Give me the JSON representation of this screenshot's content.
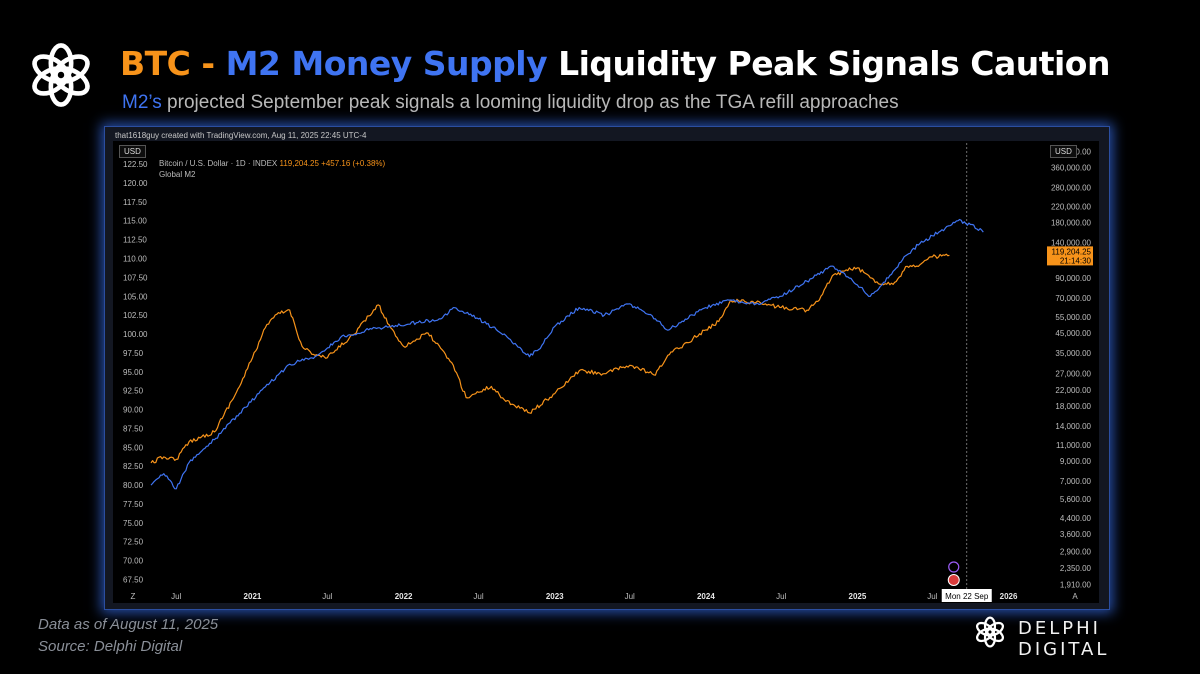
{
  "header": {
    "title_btc": "BTC",
    "title_sep": " - ",
    "title_m2": "M2 Money Supply",
    "title_rest": " Liquidity Peak Signals Caution",
    "subtitle_hl": "M2’s",
    "subtitle_rest": " projected September peak signals a looming liquidity drop as the TGA refill approaches"
  },
  "tv": {
    "credit": "that1618guy created with TradingView.com, Aug 11, 2025 22:45 UTC-4",
    "currency_left": "USD",
    "currency_right": "USD",
    "legend_symbol": "Bitcoin / U.S. Dollar · 1D · INDEX",
    "legend_last": "119,204.25 +457.16 (+0.38%)",
    "legend_series2": "Global M2",
    "price_tag": "119,204.25",
    "price_time": "21:14:30",
    "cursor_label": "Mon 22 Sep",
    "corner_left": "Z",
    "corner_right": "A"
  },
  "footer": {
    "data_as_of": "Data as of August 11, 2025",
    "source": "Source: Delphi Digital",
    "brand": "DELPHI DIGITAL"
  },
  "colors": {
    "btc": "#f7931a",
    "m2": "#3f74f2",
    "background": "#000000"
  },
  "chart_data": {
    "type": "line",
    "title": "",
    "x_ticks": [
      "Jul",
      "2021",
      "Jul",
      "2022",
      "Jul",
      "2023",
      "Jul",
      "2024",
      "Jul",
      "2025",
      "Jul",
      "2026"
    ],
    "x_range": [
      "2020-05-01",
      "2026-03-01"
    ],
    "left_axis": {
      "series": "Global M2",
      "ticks": [
        "67.50",
        "70.00",
        "72.50",
        "75.00",
        "77.50",
        "80.00",
        "82.50",
        "85.00",
        "87.50",
        "90.00",
        "92.50",
        "95.00",
        "97.50",
        "100.00",
        "102.50",
        "105.00",
        "107.50",
        "110.00",
        "112.50",
        "115.00",
        "117.50",
        "120.00",
        "122.50"
      ],
      "range": [
        66.5,
        124.5
      ]
    },
    "right_axis": {
      "series": "Bitcoin / U.S. Dollar",
      "scale": "log",
      "ticks": [
        "1,910.00",
        "2,350.00",
        "2,900.00",
        "3,600.00",
        "4,400.00",
        "5,600.00",
        "7,000.00",
        "9,000.00",
        "11,000.00",
        "14,000.00",
        "18,000.00",
        "22,000.00",
        "27,000.00",
        "35,000.00",
        "45,000.00",
        "55,000.00",
        "70,000.00",
        "90,000.00",
        "140,000.00",
        "180,000.00",
        "220,000.00",
        "280,000.00",
        "360,000.00",
        "440,000.00"
      ]
    },
    "series": [
      {
        "name": "Global M2",
        "axis": "left",
        "color": "#3f74f2",
        "points": [
          [
            "2020-05-01",
            80.0
          ],
          [
            "2020-06-01",
            81.5
          ],
          [
            "2020-07-01",
            79.5
          ],
          [
            "2020-08-01",
            83.0
          ],
          [
            "2020-10-01",
            86.0
          ],
          [
            "2020-12-01",
            89.5
          ],
          [
            "2021-02-01",
            93.0
          ],
          [
            "2021-04-01",
            96.0
          ],
          [
            "2021-06-01",
            97.0
          ],
          [
            "2021-08-01",
            99.5
          ],
          [
            "2021-10-01",
            100.5
          ],
          [
            "2021-12-01",
            101.0
          ],
          [
            "2022-02-01",
            101.5
          ],
          [
            "2022-04-01",
            102.0
          ],
          [
            "2022-05-01",
            103.5
          ],
          [
            "2022-07-01",
            102.0
          ],
          [
            "2022-09-01",
            100.0
          ],
          [
            "2022-10-01",
            98.5
          ],
          [
            "2022-11-01",
            97.0
          ],
          [
            "2022-12-01",
            98.5
          ],
          [
            "2023-01-01",
            101.0
          ],
          [
            "2023-03-01",
            103.5
          ],
          [
            "2023-05-01",
            102.5
          ],
          [
            "2023-07-01",
            104.0
          ],
          [
            "2023-09-01",
            102.0
          ],
          [
            "2023-10-01",
            100.5
          ],
          [
            "2023-11-01",
            101.5
          ],
          [
            "2023-12-01",
            102.5
          ],
          [
            "2024-01-01",
            103.5
          ],
          [
            "2024-03-01",
            104.5
          ],
          [
            "2024-05-01",
            104.0
          ],
          [
            "2024-07-01",
            105.0
          ],
          [
            "2024-09-01",
            107.0
          ],
          [
            "2024-11-01",
            109.0
          ],
          [
            "2024-12-01",
            108.0
          ],
          [
            "2025-01-01",
            106.5
          ],
          [
            "2025-02-01",
            105.0
          ],
          [
            "2025-03-01",
            106.5
          ],
          [
            "2025-04-01",
            108.5
          ],
          [
            "2025-05-01",
            110.5
          ],
          [
            "2025-06-01",
            112.0
          ],
          [
            "2025-07-01",
            113.0
          ],
          [
            "2025-08-01",
            114.0
          ],
          [
            "2025-09-01",
            115.0
          ],
          [
            "2025-10-01",
            114.5
          ],
          [
            "2025-11-01",
            113.5
          ]
        ]
      },
      {
        "name": "Bitcoin / U.S. Dollar",
        "axis": "right",
        "color": "#f7931a",
        "points": [
          [
            "2020-05-01",
            8800
          ],
          [
            "2020-06-01",
            9500
          ],
          [
            "2020-07-01",
            9200
          ],
          [
            "2020-08-01",
            11500
          ],
          [
            "2020-10-01",
            13000
          ],
          [
            "2020-12-01",
            23000
          ],
          [
            "2021-01-01",
            33000
          ],
          [
            "2021-02-01",
            48000
          ],
          [
            "2021-03-01",
            57000
          ],
          [
            "2021-04-01",
            60000
          ],
          [
            "2021-05-01",
            38000
          ],
          [
            "2021-06-01",
            34000
          ],
          [
            "2021-07-01",
            33000
          ],
          [
            "2021-09-01",
            44000
          ],
          [
            "2021-11-01",
            64000
          ],
          [
            "2021-12-01",
            48000
          ],
          [
            "2022-01-01",
            38000
          ],
          [
            "2022-03-01",
            45000
          ],
          [
            "2022-05-01",
            30000
          ],
          [
            "2022-06-01",
            20000
          ],
          [
            "2022-08-01",
            23000
          ],
          [
            "2022-09-01",
            19500
          ],
          [
            "2022-11-01",
            16500
          ],
          [
            "2023-01-01",
            21000
          ],
          [
            "2023-03-01",
            28000
          ],
          [
            "2023-05-01",
            27000
          ],
          [
            "2023-07-01",
            30000
          ],
          [
            "2023-09-01",
            26500
          ],
          [
            "2023-10-01",
            34000
          ],
          [
            "2023-12-01",
            42000
          ],
          [
            "2024-02-01",
            52000
          ],
          [
            "2024-03-01",
            68000
          ],
          [
            "2024-05-01",
            66000
          ],
          [
            "2024-07-01",
            62000
          ],
          [
            "2024-09-01",
            60000
          ],
          [
            "2024-10-01",
            68000
          ],
          [
            "2024-11-01",
            92000
          ],
          [
            "2024-12-01",
            98000
          ],
          [
            "2025-01-01",
            102000
          ],
          [
            "2025-02-01",
            90000
          ],
          [
            "2025-03-01",
            83000
          ],
          [
            "2025-04-01",
            85000
          ],
          [
            "2025-05-01",
            104000
          ],
          [
            "2025-06-01",
            106000
          ],
          [
            "2025-07-01",
            117000
          ],
          [
            "2025-08-11",
            119204.25
          ]
        ]
      }
    ],
    "annotations": [
      {
        "text": "Mon 22 Sep",
        "x": "2025-09-22",
        "kind": "crosshair"
      }
    ]
  }
}
